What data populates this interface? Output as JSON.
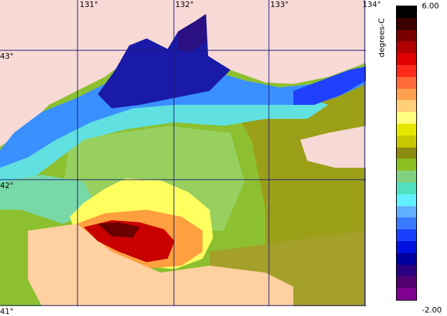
{
  "map": {
    "lon_labels": [
      "131°",
      "132°",
      "133°",
      "134°"
    ],
    "lat_labels": [
      "43°",
      "42°",
      "41°"
    ],
    "land_color": "#f7d9d5",
    "grid_color": "#1a1a7a"
  },
  "legend": {
    "unit": "degrees-C",
    "max_label": "6.00",
    "min_label": "-2.00",
    "colors": [
      "#000000",
      "#3a0000",
      "#7a0000",
      "#b00000",
      "#e00000",
      "#ff2a1a",
      "#ff6a3a",
      "#ffa050",
      "#ffcf78",
      "#ffff80",
      "#e6e600",
      "#c8c800",
      "#8c8c10",
      "#8cc020",
      "#80d080",
      "#50e0c0",
      "#60f0ff",
      "#60b0ff",
      "#3a7aff",
      "#1a40ff",
      "#0010e0",
      "#0000a0",
      "#2a0080",
      "#500070",
      "#800090"
    ]
  },
  "zones": [
    {
      "name": "cold-coastal-north",
      "color": "#1a1aa0"
    },
    {
      "name": "cool-blue-band",
      "color": "#2a6aff"
    },
    {
      "name": "cyan-band",
      "color": "#50d0ff"
    },
    {
      "name": "green-central",
      "color": "#90c040"
    },
    {
      "name": "olive-east",
      "color": "#a0a020"
    },
    {
      "name": "warm-yellow-eddy",
      "color": "#ffff60"
    },
    {
      "name": "hot-red-core",
      "color": "#c00000"
    }
  ]
}
